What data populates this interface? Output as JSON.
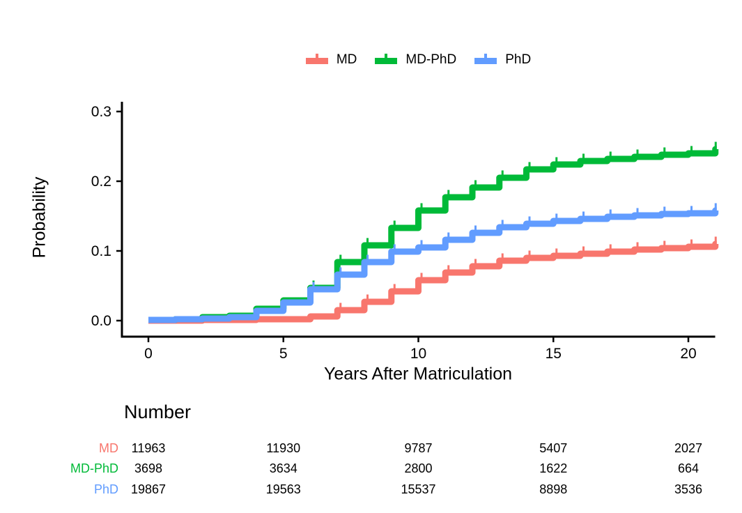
{
  "colors": {
    "md": "#F8766D",
    "mdphd": "#00BA38",
    "phd": "#619CFF",
    "axis": "#000000"
  },
  "legend": {
    "position": "top",
    "items": [
      {
        "label": "MD",
        "color": "#F8766D"
      },
      {
        "label": "MD-PhD",
        "color": "#00BA38"
      },
      {
        "label": "PhD",
        "color": "#619CFF"
      }
    ]
  },
  "chart_data": {
    "type": "line",
    "subtype": "step-cumulative-incidence",
    "title": "",
    "xlabel": "Years After Matriculation",
    "ylabel": "Probability",
    "xlim": [
      0,
      21
    ],
    "ylim": [
      0.0,
      0.3
    ],
    "x_ticks": [
      0,
      5,
      10,
      15,
      20
    ],
    "x_tick_labels": [
      "0",
      "5",
      "10",
      "15",
      "20"
    ],
    "y_ticks": [
      0.0,
      0.1,
      0.2,
      0.3
    ],
    "y_tick_labels": [
      "0.0",
      "0.1",
      "0.2",
      "0.3"
    ],
    "grid": "off",
    "legend_position": "top",
    "x_years": [
      0,
      1,
      2,
      3,
      4,
      5,
      6,
      7,
      8,
      9,
      10,
      11,
      12,
      13,
      14,
      15,
      16,
      17,
      18,
      19,
      20,
      21
    ],
    "series": [
      {
        "name": "MD",
        "color": "#F8766D",
        "values": [
          0.0,
          0.0,
          0.001,
          0.001,
          0.002,
          0.002,
          0.006,
          0.015,
          0.027,
          0.042,
          0.058,
          0.069,
          0.078,
          0.086,
          0.09,
          0.093,
          0.096,
          0.099,
          0.102,
          0.104,
          0.106,
          0.11
        ],
        "censor_tick_years": [
          7,
          8,
          9,
          10,
          11,
          12,
          13,
          14,
          15,
          16,
          17,
          18,
          19,
          20,
          21
        ]
      },
      {
        "name": "MD-PhD",
        "color": "#00BA38",
        "values": [
          0.001,
          0.002,
          0.005,
          0.007,
          0.017,
          0.029,
          0.047,
          0.084,
          0.108,
          0.133,
          0.158,
          0.177,
          0.191,
          0.205,
          0.217,
          0.224,
          0.229,
          0.232,
          0.235,
          0.238,
          0.24,
          0.246
        ],
        "censor_tick_years": [
          6,
          7,
          8,
          9,
          10,
          11,
          12,
          13,
          14,
          15,
          16,
          17,
          18,
          19,
          20,
          21
        ]
      },
      {
        "name": "PhD",
        "color": "#619CFF",
        "values": [
          0.001,
          0.002,
          0.003,
          0.005,
          0.014,
          0.026,
          0.045,
          0.066,
          0.084,
          0.099,
          0.105,
          0.116,
          0.126,
          0.134,
          0.139,
          0.143,
          0.146,
          0.149,
          0.151,
          0.153,
          0.154,
          0.158
        ],
        "censor_tick_years": [
          6,
          7,
          8,
          9,
          10,
          11,
          12,
          13,
          14,
          15,
          16,
          17,
          18,
          19,
          20,
          21
        ]
      }
    ]
  },
  "risk_table": {
    "title": "Number",
    "time_points": [
      0,
      5,
      10,
      15,
      20
    ],
    "rows": [
      {
        "label": "MD",
        "color": "#F8766D",
        "values": [
          "11963",
          "11930",
          "9787",
          "5407",
          "2027"
        ]
      },
      {
        "label": "MD-PhD",
        "color": "#00BA38",
        "values": [
          "3698",
          "3634",
          "2800",
          "1622",
          "664"
        ]
      },
      {
        "label": "PhD",
        "color": "#619CFF",
        "values": [
          "19867",
          "19563",
          "15537",
          "8898",
          "3536"
        ]
      }
    ]
  }
}
